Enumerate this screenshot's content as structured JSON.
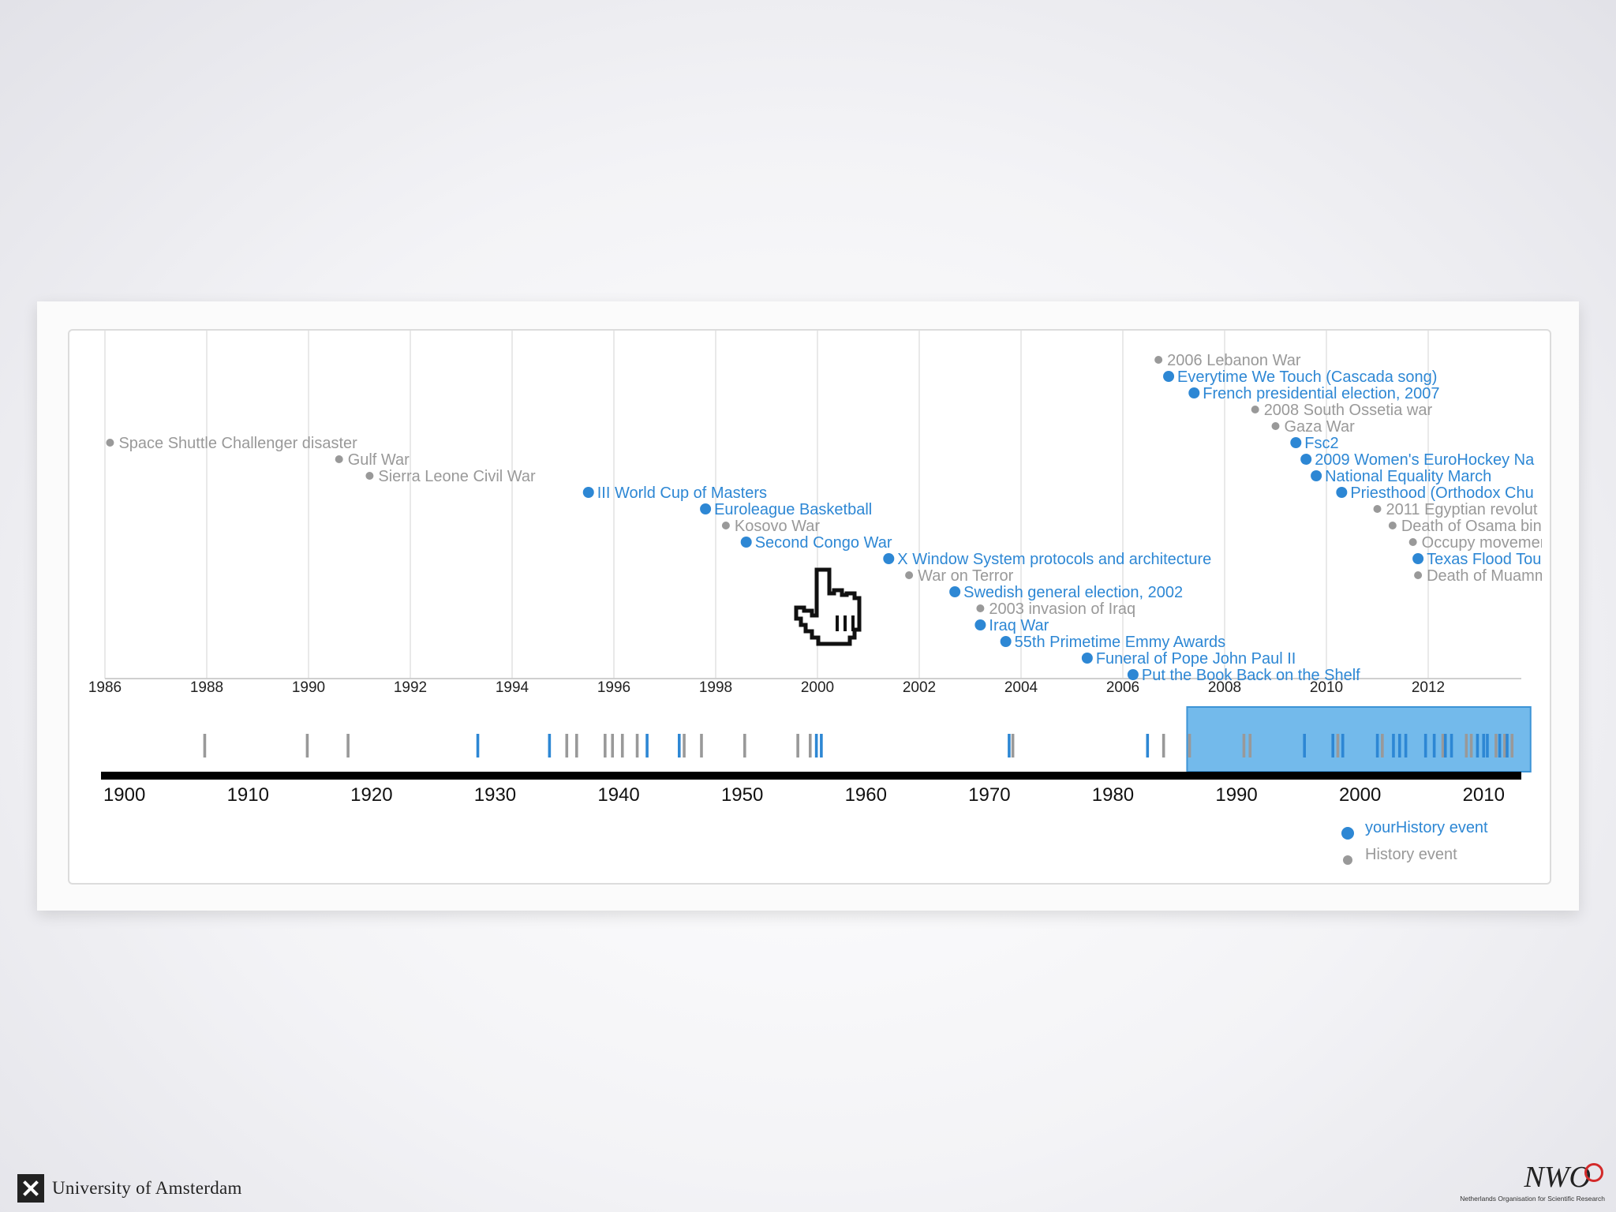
{
  "colors": {
    "user": "#2d87d4",
    "history": "#999999",
    "grid": "#e2e2e2",
    "brush": "#5aaee8"
  },
  "chart_data": {
    "type": "timeline",
    "detail_axis": {
      "range": [
        1986,
        2013.8
      ],
      "ticks": [
        "1986",
        "1988",
        "1990",
        "1992",
        "1994",
        "1996",
        "1998",
        "2000",
        "2002",
        "2004",
        "2006",
        "2008",
        "2010",
        "2012"
      ]
    },
    "overview_axis": {
      "range": [
        1899,
        2013.8
      ],
      "ticks": [
        "1900",
        "1910",
        "1920",
        "1930",
        "1940",
        "1950",
        "1960",
        "1970",
        "1980",
        "1990",
        "2000",
        "2010"
      ],
      "brush": [
        1986,
        2013.8
      ]
    },
    "events": [
      {
        "label": "Space Shuttle Challenger disaster",
        "year": 1986.1,
        "type": "history",
        "row": 5
      },
      {
        "label": "Gulf War",
        "year": 1990.6,
        "type": "history",
        "row": 6
      },
      {
        "label": "Sierra Leone Civil War",
        "year": 1991.2,
        "type": "history",
        "row": 7
      },
      {
        "label": "III World Cup of Masters",
        "year": 1995.5,
        "type": "user",
        "row": 8
      },
      {
        "label": "Euroleague Basketball",
        "year": 1997.8,
        "type": "user",
        "row": 9
      },
      {
        "label": "Kosovo War",
        "year": 1998.2,
        "type": "history",
        "row": 10
      },
      {
        "label": "Second Congo War",
        "year": 1998.6,
        "type": "user",
        "row": 11
      },
      {
        "label": "X Window System protocols and architecture",
        "year": 2001.4,
        "type": "user",
        "row": 12
      },
      {
        "label": "War on Terror",
        "year": 2001.8,
        "type": "history",
        "row": 13
      },
      {
        "label": "Swedish general election, 2002",
        "year": 2002.7,
        "type": "user",
        "row": 14
      },
      {
        "label": "2003 invasion of Iraq",
        "year": 2003.2,
        "type": "history",
        "row": 15
      },
      {
        "label": "Iraq War",
        "year": 2003.2,
        "type": "user",
        "row": 16
      },
      {
        "label": "55th Primetime Emmy Awards",
        "year": 2003.7,
        "type": "user",
        "row": 17
      },
      {
        "label": "Funeral of Pope John Paul II",
        "year": 2005.3,
        "type": "user",
        "row": 18
      },
      {
        "label": "Put the Book Back on the Shelf",
        "year": 2006.2,
        "type": "user",
        "row": 19
      },
      {
        "label": "2006 Lebanon War",
        "year": 2006.7,
        "type": "history",
        "row": 0
      },
      {
        "label": "Everytime We Touch (Cascada song)",
        "year": 2006.9,
        "type": "user",
        "row": 1
      },
      {
        "label": "French presidential election, 2007",
        "year": 2007.4,
        "type": "user",
        "row": 2
      },
      {
        "label": "2008 South Ossetia war",
        "year": 2008.6,
        "type": "history",
        "row": 3
      },
      {
        "label": "Gaza War",
        "year": 2009.0,
        "type": "history",
        "row": 4
      },
      {
        "label": "Fsc2",
        "year": 2009.4,
        "type": "user",
        "row": 5
      },
      {
        "label": "2009 Women's EuroHockey Na",
        "year": 2009.6,
        "type": "user",
        "row": 6
      },
      {
        "label": "National Equality March",
        "year": 2009.8,
        "type": "user",
        "row": 7
      },
      {
        "label": "Priesthood (Orthodox Chu",
        "year": 2010.3,
        "type": "user",
        "row": 8
      },
      {
        "label": "2011 Egyptian revolut",
        "year": 2011.0,
        "type": "history",
        "row": 9
      },
      {
        "label": "Death of Osama bin",
        "year": 2011.3,
        "type": "history",
        "row": 10
      },
      {
        "label": "Occupy movemer",
        "year": 2011.7,
        "type": "history",
        "row": 11
      },
      {
        "label": "Texas Flood Tour",
        "year": 2011.8,
        "type": "user",
        "row": 12
      },
      {
        "label": "Death of Muamm",
        "year": 2011.8,
        "type": "history",
        "row": 13
      }
    ],
    "overview_marks": [
      {
        "year": 1906.5,
        "type": "history"
      },
      {
        "year": 1914.8,
        "type": "history"
      },
      {
        "year": 1918.1,
        "type": "history"
      },
      {
        "year": 1928.6,
        "type": "user"
      },
      {
        "year": 1934.4,
        "type": "user"
      },
      {
        "year": 1935.8,
        "type": "history"
      },
      {
        "year": 1936.6,
        "type": "history"
      },
      {
        "year": 1938.9,
        "type": "history"
      },
      {
        "year": 1939.5,
        "type": "history"
      },
      {
        "year": 1940.3,
        "type": "history"
      },
      {
        "year": 1941.5,
        "type": "history"
      },
      {
        "year": 1942.3,
        "type": "user"
      },
      {
        "year": 1944.9,
        "type": "user"
      },
      {
        "year": 1945.3,
        "type": "history"
      },
      {
        "year": 1946.7,
        "type": "history"
      },
      {
        "year": 1950.2,
        "type": "history"
      },
      {
        "year": 1954.5,
        "type": "history"
      },
      {
        "year": 1955.5,
        "type": "history"
      },
      {
        "year": 1956.0,
        "type": "user"
      },
      {
        "year": 1956.4,
        "type": "user"
      },
      {
        "year": 1971.6,
        "type": "user"
      },
      {
        "year": 1971.9,
        "type": "history"
      },
      {
        "year": 1982.8,
        "type": "user"
      },
      {
        "year": 1984.1,
        "type": "history"
      },
      {
        "year": 1986.2,
        "type": "history"
      },
      {
        "year": 1990.6,
        "type": "history"
      },
      {
        "year": 1991.1,
        "type": "history"
      },
      {
        "year": 1995.5,
        "type": "user"
      },
      {
        "year": 1997.8,
        "type": "user"
      },
      {
        "year": 1998.2,
        "type": "history"
      },
      {
        "year": 1998.6,
        "type": "user"
      },
      {
        "year": 2001.4,
        "type": "user"
      },
      {
        "year": 2001.8,
        "type": "history"
      },
      {
        "year": 2002.7,
        "type": "user"
      },
      {
        "year": 2003.2,
        "type": "user"
      },
      {
        "year": 2003.7,
        "type": "user"
      },
      {
        "year": 2005.3,
        "type": "user"
      },
      {
        "year": 2006.0,
        "type": "user"
      },
      {
        "year": 2006.7,
        "type": "history"
      },
      {
        "year": 2006.9,
        "type": "user"
      },
      {
        "year": 2007.4,
        "type": "user"
      },
      {
        "year": 2008.6,
        "type": "history"
      },
      {
        "year": 2009.0,
        "type": "history"
      },
      {
        "year": 2009.5,
        "type": "user"
      },
      {
        "year": 2010.0,
        "type": "user"
      },
      {
        "year": 2010.3,
        "type": "user"
      },
      {
        "year": 2011.0,
        "type": "history"
      },
      {
        "year": 2011.3,
        "type": "user"
      },
      {
        "year": 2011.7,
        "type": "history"
      },
      {
        "year": 2011.9,
        "type": "user"
      },
      {
        "year": 2012.3,
        "type": "history"
      }
    ],
    "legend": [
      {
        "label": "yourHistory event",
        "type": "user"
      },
      {
        "label": "History event",
        "type": "history"
      }
    ]
  },
  "footer": {
    "university": "University of Amsterdam",
    "nwo_mark": "NWO",
    "nwo_subtitle": "Netherlands Organisation for Scientific Research"
  }
}
